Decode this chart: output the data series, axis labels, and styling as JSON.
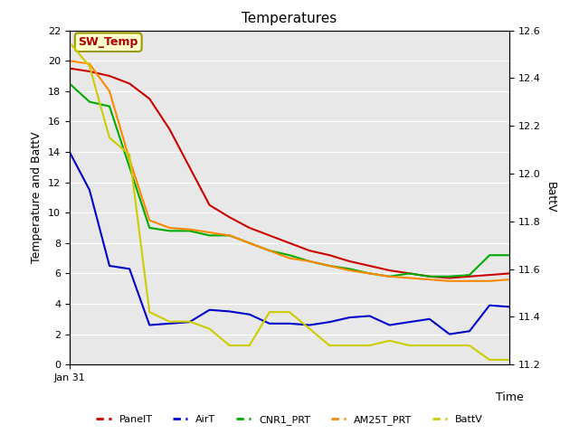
{
  "title": "Temperatures",
  "xlabel": "Time",
  "ylabel_left": "Temperature and BattV",
  "ylabel_right": "BattV",
  "xlim": [
    0,
    22
  ],
  "ylim_left": [
    0,
    22
  ],
  "ylim_right": [
    11.2,
    12.6
  ],
  "xtick_label": "Jan 31",
  "annotation_text": "SW_Temp",
  "annotation_color": "#aa0000",
  "annotation_box_facecolor": "#ffffcc",
  "annotation_box_edgecolor": "#999900",
  "background_color": "#e8e8e8",
  "grid_color": "#ffffff",
  "PanelT": {
    "color": "#cc0000",
    "x": [
      0,
      1,
      2,
      3,
      4,
      5,
      6,
      7,
      8,
      9,
      10,
      11,
      12,
      13,
      14,
      15,
      16,
      17,
      18,
      19,
      20,
      21,
      22
    ],
    "y": [
      19.5,
      19.3,
      19.0,
      18.5,
      17.5,
      15.5,
      13.0,
      10.5,
      9.7,
      9.0,
      8.5,
      8.0,
      7.5,
      7.2,
      6.8,
      6.5,
      6.2,
      6.0,
      5.8,
      5.7,
      5.8,
      5.9,
      6.0
    ]
  },
  "AirT": {
    "color": "#0000cc",
    "x": [
      0,
      1,
      2,
      3,
      4,
      5,
      6,
      7,
      8,
      9,
      10,
      11,
      12,
      13,
      14,
      15,
      16,
      17,
      18,
      19,
      20,
      21,
      22
    ],
    "y": [
      14.0,
      11.5,
      6.5,
      6.3,
      2.6,
      2.7,
      2.8,
      3.6,
      3.5,
      3.3,
      2.7,
      2.7,
      2.6,
      2.8,
      3.1,
      3.2,
      2.6,
      2.8,
      3.0,
      2.0,
      2.2,
      3.9,
      3.8
    ]
  },
  "CNR1_PRT": {
    "color": "#00aa00",
    "x": [
      0,
      1,
      2,
      3,
      4,
      5,
      6,
      7,
      8,
      9,
      10,
      11,
      12,
      13,
      14,
      15,
      16,
      17,
      18,
      19,
      20,
      21,
      22
    ],
    "y": [
      18.5,
      17.3,
      17.0,
      13.0,
      9.0,
      8.8,
      8.8,
      8.5,
      8.5,
      8.0,
      7.5,
      7.2,
      6.8,
      6.5,
      6.3,
      6.0,
      5.8,
      6.0,
      5.8,
      5.8,
      5.9,
      7.2,
      7.2
    ]
  },
  "AM25T_PRT": {
    "color": "#ff8800",
    "x": [
      0,
      1,
      2,
      3,
      4,
      5,
      6,
      7,
      8,
      9,
      10,
      11,
      12,
      13,
      14,
      15,
      16,
      17,
      18,
      19,
      20,
      21,
      22
    ],
    "y": [
      20.0,
      19.8,
      18.0,
      13.5,
      9.5,
      9.0,
      8.9,
      8.7,
      8.5,
      8.0,
      7.5,
      7.0,
      6.8,
      6.5,
      6.2,
      6.0,
      5.8,
      5.7,
      5.6,
      5.5,
      5.5,
      5.5,
      5.6
    ]
  },
  "BattV": {
    "color": "#cccc00",
    "x": [
      0,
      1,
      2,
      3,
      4,
      5,
      6,
      7,
      8,
      9,
      10,
      11,
      12,
      13,
      14,
      15,
      16,
      17,
      18,
      19,
      20,
      21,
      22
    ],
    "y_batt": [
      12.55,
      12.45,
      12.15,
      12.08,
      11.42,
      11.38,
      11.38,
      11.35,
      11.28,
      11.28,
      11.42,
      11.42,
      11.35,
      11.28,
      11.28,
      11.28,
      11.3,
      11.28,
      11.28,
      11.28,
      11.28,
      11.22,
      11.22
    ]
  },
  "legend": [
    {
      "label": "PanelT",
      "color": "#cc0000"
    },
    {
      "label": "AirT",
      "color": "#0000cc"
    },
    {
      "label": "CNR1_PRT",
      "color": "#00aa00"
    },
    {
      "label": "AM25T_PRT",
      "color": "#ff8800"
    },
    {
      "label": "BattV",
      "color": "#cccc00"
    }
  ]
}
